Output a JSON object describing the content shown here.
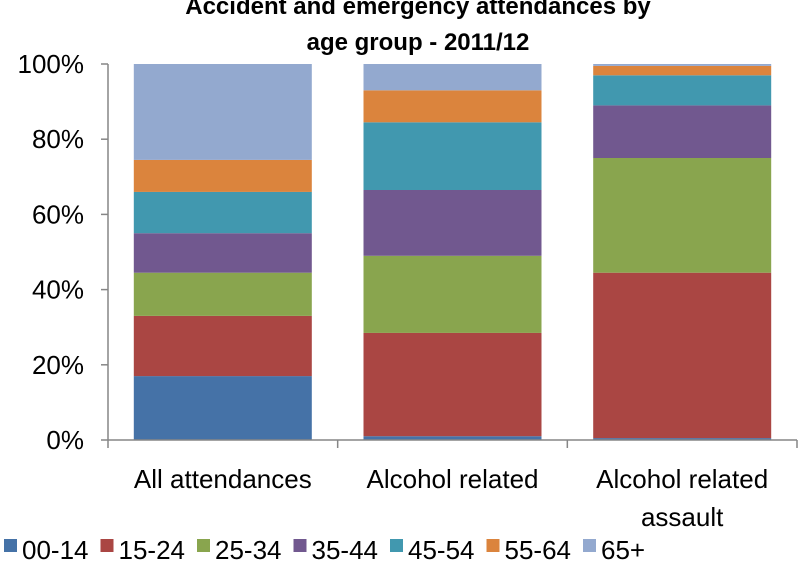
{
  "chart_data": {
    "type": "bar",
    "stacked": true,
    "title_lines": [
      "Accident and emergency attendances by",
      "age group - 2011/12"
    ],
    "categories": [
      [
        "All attendances"
      ],
      [
        "Alcohol related"
      ],
      [
        "Alcohol related",
        "assault"
      ]
    ],
    "ylim": [
      0,
      100
    ],
    "y_ticks": [
      0,
      20,
      40,
      60,
      80,
      100
    ],
    "y_tick_labels": [
      "0%",
      "20%",
      "40%",
      "60%",
      "80%",
      "100%"
    ],
    "grid": false,
    "legend_position": "bottom",
    "series": [
      {
        "name": "00-14",
        "color": "#4572A7",
        "values": [
          17.0,
          1.0,
          0.5
        ]
      },
      {
        "name": "15-24",
        "color": "#AA4643",
        "values": [
          16.0,
          27.5,
          44.0
        ]
      },
      {
        "name": "25-34",
        "color": "#89A54E",
        "values": [
          11.5,
          20.5,
          30.5
        ]
      },
      {
        "name": "35-44",
        "color": "#71588F",
        "values": [
          10.5,
          17.5,
          14.0
        ]
      },
      {
        "name": "45-54",
        "color": "#4198AF",
        "values": [
          11.0,
          18.0,
          8.0
        ]
      },
      {
        "name": "55-64",
        "color": "#DB843D",
        "values": [
          8.5,
          8.5,
          2.5
        ]
      },
      {
        "name": "65+",
        "color": "#93A9CF",
        "values": [
          25.5,
          7.0,
          0.5
        ]
      }
    ]
  }
}
